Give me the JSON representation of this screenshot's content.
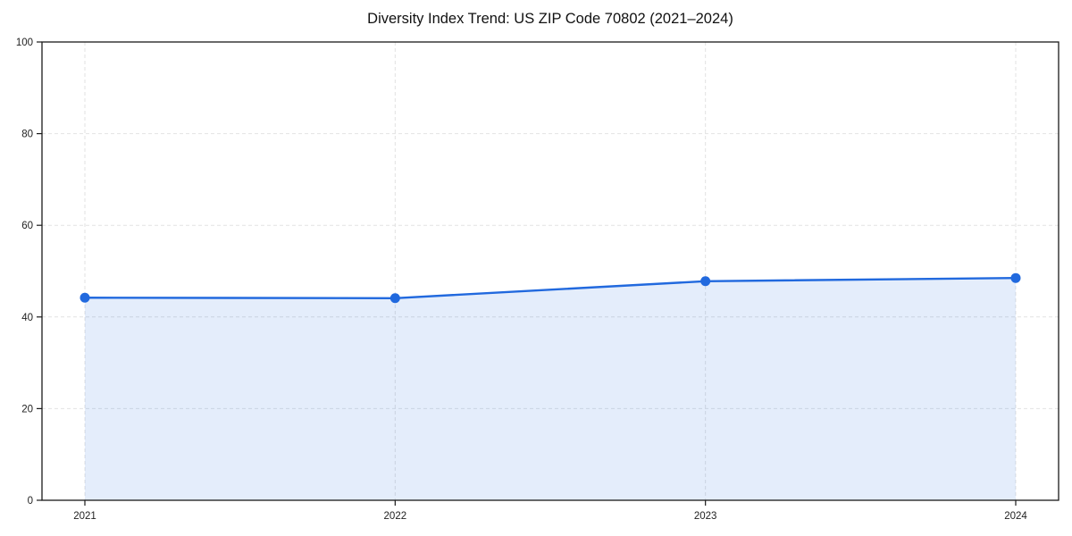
{
  "chart_data": {
    "type": "area",
    "title": "Diversity Index Trend: US ZIP Code 70802 (2021–2024)",
    "categories": [
      "2021",
      "2022",
      "2023",
      "2024"
    ],
    "series": [
      {
        "name": "Diversity Index",
        "values": [
          44.2,
          44.1,
          47.8,
          48.5
        ]
      }
    ],
    "xlabel": "",
    "ylabel": "",
    "ylim": [
      0,
      100
    ],
    "yticks": [
      0,
      20,
      40,
      60,
      80,
      100
    ],
    "grid": true,
    "grid_style": "dashed",
    "legend": "none",
    "colors": {
      "line": "#2169de",
      "marker": "#2169de",
      "fill": "#2169de",
      "fill_opacity": 0.12,
      "grid": "#e2e2e2",
      "spine": "#1a1a1a",
      "tick_label": "#222222",
      "title": "#111111",
      "background": "#ffffff"
    }
  }
}
